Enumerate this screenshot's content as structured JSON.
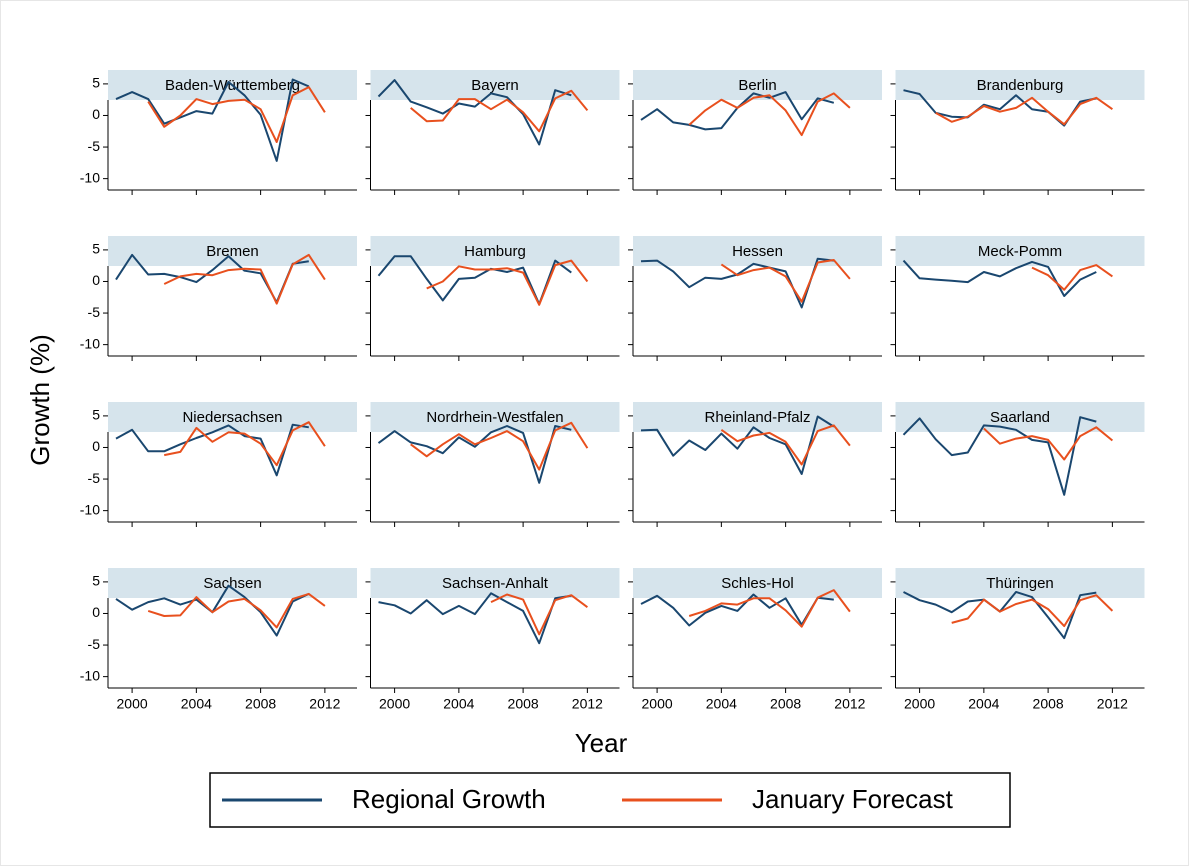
{
  "chart_data": {
    "type": "line",
    "x_label": "Year",
    "y_label": "Growth (%)",
    "x": [
      1999,
      2000,
      2001,
      2002,
      2003,
      2004,
      2005,
      2006,
      2007,
      2008,
      2009,
      2010,
      2011,
      2012
    ],
    "xlim": [
      1998.5,
      2014
    ],
    "xticks": [
      2000,
      2004,
      2008,
      2012
    ],
    "ylim": [
      -11.8,
      7.2
    ],
    "yticks": [
      5,
      0,
      -5,
      -10
    ],
    "series": [
      {
        "name": "Regional Growth",
        "color": "#1a476f"
      },
      {
        "name": "January Forecast",
        "color": "#e8501e"
      }
    ],
    "panels": [
      {
        "title": "Baden-Württemberg",
        "series": [
          {
            "values": [
              2.6,
              3.7,
              2.6,
              -1.3,
              -0.3,
              0.7,
              0.3,
              5.3,
              3.2,
              0.1,
              -7.2,
              5.7,
              4.6,
              null
            ]
          },
          {
            "values": [
              null,
              null,
              2.2,
              -1.8,
              0.0,
              2.6,
              1.8,
              2.3,
              2.5,
              1.0,
              -4.2,
              3.2,
              4.5,
              0.5
            ]
          }
        ]
      },
      {
        "title": "Bayern",
        "series": [
          {
            "values": [
              3.0,
              5.6,
              2.2,
              1.3,
              0.3,
              1.9,
              1.4,
              3.5,
              2.9,
              0.2,
              -4.6,
              4.0,
              3.2,
              null
            ]
          },
          {
            "values": [
              null,
              null,
              1.2,
              -0.9,
              -0.8,
              2.6,
              2.6,
              1.0,
              2.5,
              0.5,
              -2.5,
              2.7,
              3.9,
              0.8
            ]
          }
        ]
      },
      {
        "title": "Berlin",
        "series": [
          {
            "values": [
              -0.7,
              1.0,
              -1.1,
              -1.5,
              -2.2,
              -2.0,
              1.2,
              3.5,
              2.8,
              3.7,
              -0.6,
              2.7,
              2.0,
              null
            ]
          },
          {
            "values": [
              null,
              null,
              null,
              -1.5,
              0.8,
              2.5,
              1.2,
              2.8,
              3.2,
              0.8,
              -3.1,
              2.2,
              3.5,
              1.2
            ]
          }
        ]
      },
      {
        "title": "Brandenburg",
        "series": [
          {
            "values": [
              4.0,
              3.4,
              0.4,
              -0.2,
              -0.3,
              1.7,
              1.0,
              3.2,
              1.0,
              0.6,
              -1.6,
              2.2,
              2.7,
              null
            ]
          },
          {
            "values": [
              null,
              null,
              0.4,
              -1.0,
              -0.2,
              1.5,
              0.6,
              1.2,
              2.8,
              0.6,
              -1.4,
              1.8,
              2.8,
              1.0
            ]
          }
        ]
      },
      {
        "title": "Bremen",
        "series": [
          {
            "values": [
              0.3,
              4.2,
              1.1,
              1.2,
              0.7,
              -0.1,
              1.8,
              4.0,
              1.7,
              1.3,
              -3.3,
              2.8,
              3.2,
              null
            ]
          },
          {
            "values": [
              null,
              null,
              null,
              -0.4,
              0.8,
              1.2,
              1.0,
              1.8,
              2.0,
              1.9,
              -3.5,
              2.7,
              4.2,
              0.3
            ]
          }
        ]
      },
      {
        "title": "Hamburg",
        "series": [
          {
            "values": [
              0.9,
              4.0,
              4.0,
              0.4,
              -3.0,
              0.4,
              0.6,
              2.0,
              1.5,
              2.2,
              -3.6,
              3.3,
              1.4,
              null
            ]
          },
          {
            "values": [
              null,
              null,
              null,
              -1.1,
              0.0,
              2.4,
              1.9,
              1.9,
              2.1,
              1.4,
              -3.7,
              2.6,
              3.3,
              0.0
            ]
          }
        ]
      },
      {
        "title": "Hessen",
        "series": [
          {
            "values": [
              3.2,
              3.3,
              1.6,
              -0.9,
              0.6,
              0.4,
              1.1,
              2.8,
              2.2,
              1.6,
              -4.1,
              3.6,
              3.3,
              null
            ]
          },
          {
            "values": [
              null,
              null,
              null,
              null,
              null,
              2.7,
              1.0,
              1.8,
              2.2,
              0.8,
              -3.2,
              3.0,
              3.4,
              0.4
            ]
          }
        ]
      },
      {
        "title": "Meck-Pomm",
        "series": [
          {
            "values": [
              3.3,
              0.5,
              0.3,
              0.1,
              -0.1,
              1.5,
              0.8,
              2.1,
              3.1,
              2.3,
              -2.3,
              0.3,
              1.5,
              null
            ]
          },
          {
            "values": [
              null,
              null,
              null,
              null,
              null,
              null,
              null,
              null,
              2.2,
              1.0,
              -1.3,
              1.8,
              2.6,
              0.8
            ]
          }
        ]
      },
      {
        "title": "Niedersachsen",
        "series": [
          {
            "values": [
              1.4,
              2.8,
              -0.6,
              -0.6,
              0.5,
              1.5,
              2.4,
              3.5,
              1.8,
              1.4,
              -4.4,
              3.6,
              3.2,
              null
            ]
          },
          {
            "values": [
              null,
              null,
              null,
              -1.2,
              -0.7,
              3.1,
              0.9,
              2.4,
              2.2,
              0.6,
              -2.8,
              2.7,
              4.0,
              0.2
            ]
          }
        ]
      },
      {
        "title": "Nordrhein-Westfalen",
        "series": [
          {
            "values": [
              0.7,
              2.6,
              0.8,
              0.2,
              -0.9,
              1.6,
              0.1,
              2.4,
              3.4,
              2.3,
              -5.6,
              3.4,
              2.8,
              null
            ]
          },
          {
            "values": [
              null,
              null,
              0.5,
              -1.4,
              0.5,
              2.1,
              0.5,
              1.5,
              2.6,
              1.0,
              -3.5,
              2.7,
              3.9,
              -0.1
            ]
          }
        ]
      },
      {
        "title": "Rheinland-Pfalz",
        "series": [
          {
            "values": [
              2.7,
              2.8,
              -1.3,
              1.1,
              -0.4,
              2.2,
              -0.2,
              3.2,
              1.5,
              0.5,
              -4.2,
              4.9,
              3.3,
              null
            ]
          },
          {
            "values": [
              null,
              null,
              null,
              null,
              null,
              2.8,
              1.0,
              1.9,
              2.3,
              0.9,
              -2.7,
              2.6,
              3.5,
              0.3
            ]
          }
        ]
      },
      {
        "title": "Saarland",
        "series": [
          {
            "values": [
              2.0,
              4.6,
              1.3,
              -1.2,
              -0.8,
              3.5,
              3.3,
              2.8,
              1.2,
              0.8,
              -7.5,
              4.8,
              4.1,
              null
            ]
          },
          {
            "values": [
              null,
              null,
              null,
              null,
              null,
              3.0,
              0.6,
              1.4,
              1.8,
              1.2,
              -1.9,
              1.8,
              3.2,
              1.1
            ]
          }
        ]
      },
      {
        "title": "Sachsen",
        "series": [
          {
            "values": [
              2.3,
              0.6,
              1.8,
              2.4,
              1.4,
              2.2,
              0.2,
              4.4,
              2.6,
              0.2,
              -3.5,
              1.9,
              3.1,
              null
            ]
          },
          {
            "values": [
              null,
              null,
              0.4,
              -0.4,
              -0.3,
              2.6,
              0.2,
              1.9,
              2.3,
              0.5,
              -2.2,
              2.3,
              3.1,
              1.2
            ]
          }
        ]
      },
      {
        "title": "Sachsen-Anhalt",
        "series": [
          {
            "values": [
              1.8,
              1.3,
              0.0,
              2.1,
              -0.1,
              1.2,
              -0.1,
              3.2,
              1.8,
              0.4,
              -4.7,
              2.4,
              2.8,
              null
            ]
          },
          {
            "values": [
              null,
              null,
              null,
              null,
              null,
              null,
              null,
              1.8,
              3.0,
              2.2,
              -3.3,
              2.1,
              2.9,
              1.0
            ]
          }
        ]
      },
      {
        "title": "Schles-Hol",
        "series": [
          {
            "values": [
              1.5,
              2.8,
              0.9,
              -1.9,
              0.1,
              1.2,
              0.4,
              3.0,
              0.9,
              2.4,
              -1.8,
              2.5,
              2.2,
              null
            ]
          },
          {
            "values": [
              null,
              null,
              null,
              -0.4,
              0.4,
              1.6,
              1.4,
              2.4,
              2.4,
              0.5,
              -2.1,
              2.5,
              3.7,
              0.3
            ]
          }
        ]
      },
      {
        "title": "Thüringen",
        "series": [
          {
            "values": [
              3.4,
              2.1,
              1.4,
              0.2,
              1.9,
              2.2,
              0.3,
              3.4,
              2.6,
              -0.6,
              -3.9,
              2.9,
              3.3,
              null
            ]
          },
          {
            "values": [
              null,
              null,
              null,
              -1.5,
              -0.8,
              2.2,
              0.3,
              1.5,
              2.2,
              0.7,
              -2.0,
              2.1,
              2.9,
              0.4
            ]
          }
        ]
      }
    ]
  }
}
